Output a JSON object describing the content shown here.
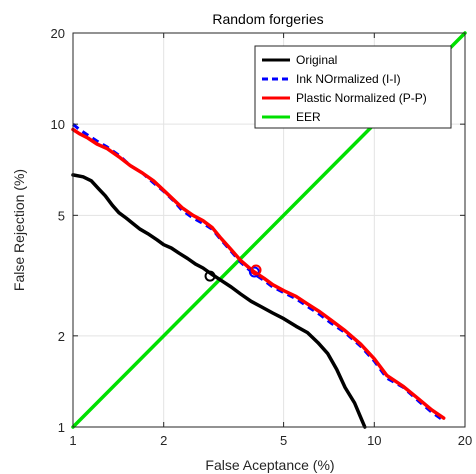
{
  "chart_data": {
    "type": "line",
    "title": "Random forgeries",
    "xlabel": "False Aceptance (%)",
    "ylabel": "False Rejection (%)",
    "xscale": "log",
    "yscale": "log",
    "xlim": [
      1,
      20
    ],
    "ylim": [
      1,
      20
    ],
    "xticks": [
      1,
      2,
      5,
      10,
      20
    ],
    "yticks": [
      1,
      2,
      5,
      10,
      20
    ],
    "xtick_labels": [
      "1",
      "2",
      "5",
      "10",
      "20"
    ],
    "ytick_labels": [
      "1",
      "2",
      "5",
      "10",
      "20"
    ],
    "grid": true,
    "legend_position": "top-right",
    "series": [
      {
        "name": "Original",
        "color": "#000000",
        "style": "solid",
        "x": [
          1.0,
          1.08,
          1.15,
          1.22,
          1.28,
          1.35,
          1.42,
          1.5,
          1.58,
          1.67,
          1.77,
          1.9,
          2.0,
          2.12,
          2.25,
          2.4,
          2.55,
          2.7,
          2.88,
          3.1,
          3.35,
          3.6,
          3.9,
          4.2,
          4.6,
          5.0,
          5.5,
          6.0,
          6.5,
          7.0,
          7.5,
          8.0,
          8.6,
          9.0,
          9.3
        ],
        "y": [
          6.8,
          6.7,
          6.5,
          6.1,
          5.8,
          5.4,
          5.1,
          4.9,
          4.7,
          4.5,
          4.35,
          4.15,
          4.0,
          3.9,
          3.75,
          3.6,
          3.45,
          3.35,
          3.2,
          3.05,
          2.9,
          2.75,
          2.6,
          2.5,
          2.38,
          2.28,
          2.15,
          2.05,
          1.9,
          1.75,
          1.55,
          1.35,
          1.2,
          1.08,
          1.0
        ]
      },
      {
        "name": "Ink NOrmalized (I-I)",
        "color": "#0000ff",
        "style": "dashed",
        "x": [
          1.0,
          1.05,
          1.12,
          1.2,
          1.3,
          1.42,
          1.55,
          1.7,
          1.85,
          2.0,
          2.15,
          2.3,
          2.5,
          2.7,
          2.9,
          3.1,
          3.35,
          3.6,
          3.85,
          4.0,
          4.3,
          4.6,
          5.0,
          5.5,
          6.0,
          6.6,
          7.2,
          8.0,
          9.0,
          10.0,
          11.0,
          12.5,
          14.0,
          15.5,
          17.0
        ],
        "y": [
          10.0,
          9.6,
          9.2,
          8.8,
          8.4,
          7.9,
          7.3,
          6.9,
          6.4,
          6.0,
          5.6,
          5.2,
          4.9,
          4.7,
          4.5,
          4.15,
          3.8,
          3.5,
          3.3,
          3.2,
          3.05,
          2.9,
          2.78,
          2.65,
          2.5,
          2.35,
          2.2,
          2.05,
          1.85,
          1.65,
          1.45,
          1.35,
          1.22,
          1.12,
          1.05
        ]
      },
      {
        "name": "Plastic Normalized (P-P)",
        "color": "#ff0000",
        "style": "solid",
        "x": [
          1.0,
          1.05,
          1.12,
          1.2,
          1.3,
          1.42,
          1.55,
          1.7,
          1.85,
          2.0,
          2.15,
          2.3,
          2.5,
          2.7,
          2.9,
          3.1,
          3.35,
          3.6,
          3.85,
          4.0,
          4.3,
          4.6,
          5.0,
          5.5,
          6.0,
          6.6,
          7.2,
          8.0,
          9.0,
          10.0,
          11.0,
          12.5,
          14.0,
          15.5,
          17.0
        ],
        "y": [
          9.6,
          9.3,
          9.0,
          8.6,
          8.3,
          7.8,
          7.3,
          6.9,
          6.5,
          6.05,
          5.65,
          5.3,
          5.0,
          4.8,
          4.55,
          4.2,
          3.85,
          3.55,
          3.35,
          3.25,
          3.1,
          2.95,
          2.82,
          2.7,
          2.55,
          2.4,
          2.25,
          2.08,
          1.88,
          1.68,
          1.48,
          1.36,
          1.24,
          1.14,
          1.07
        ]
      },
      {
        "name": "EER",
        "color": "#00e000",
        "style": "solid",
        "x": [
          1,
          20
        ],
        "y": [
          1,
          20
        ]
      }
    ],
    "eer_markers": [
      {
        "series": "Original",
        "x": 2.85,
        "y": 3.15,
        "color": "#000000"
      },
      {
        "series": "Ink NOrmalized (I-I)",
        "x": 4.0,
        "y": 3.25,
        "color": "#0000ff"
      },
      {
        "series": "Plastic Normalized (P-P)",
        "x": 4.05,
        "y": 3.3,
        "color": "#ff0000"
      }
    ]
  }
}
